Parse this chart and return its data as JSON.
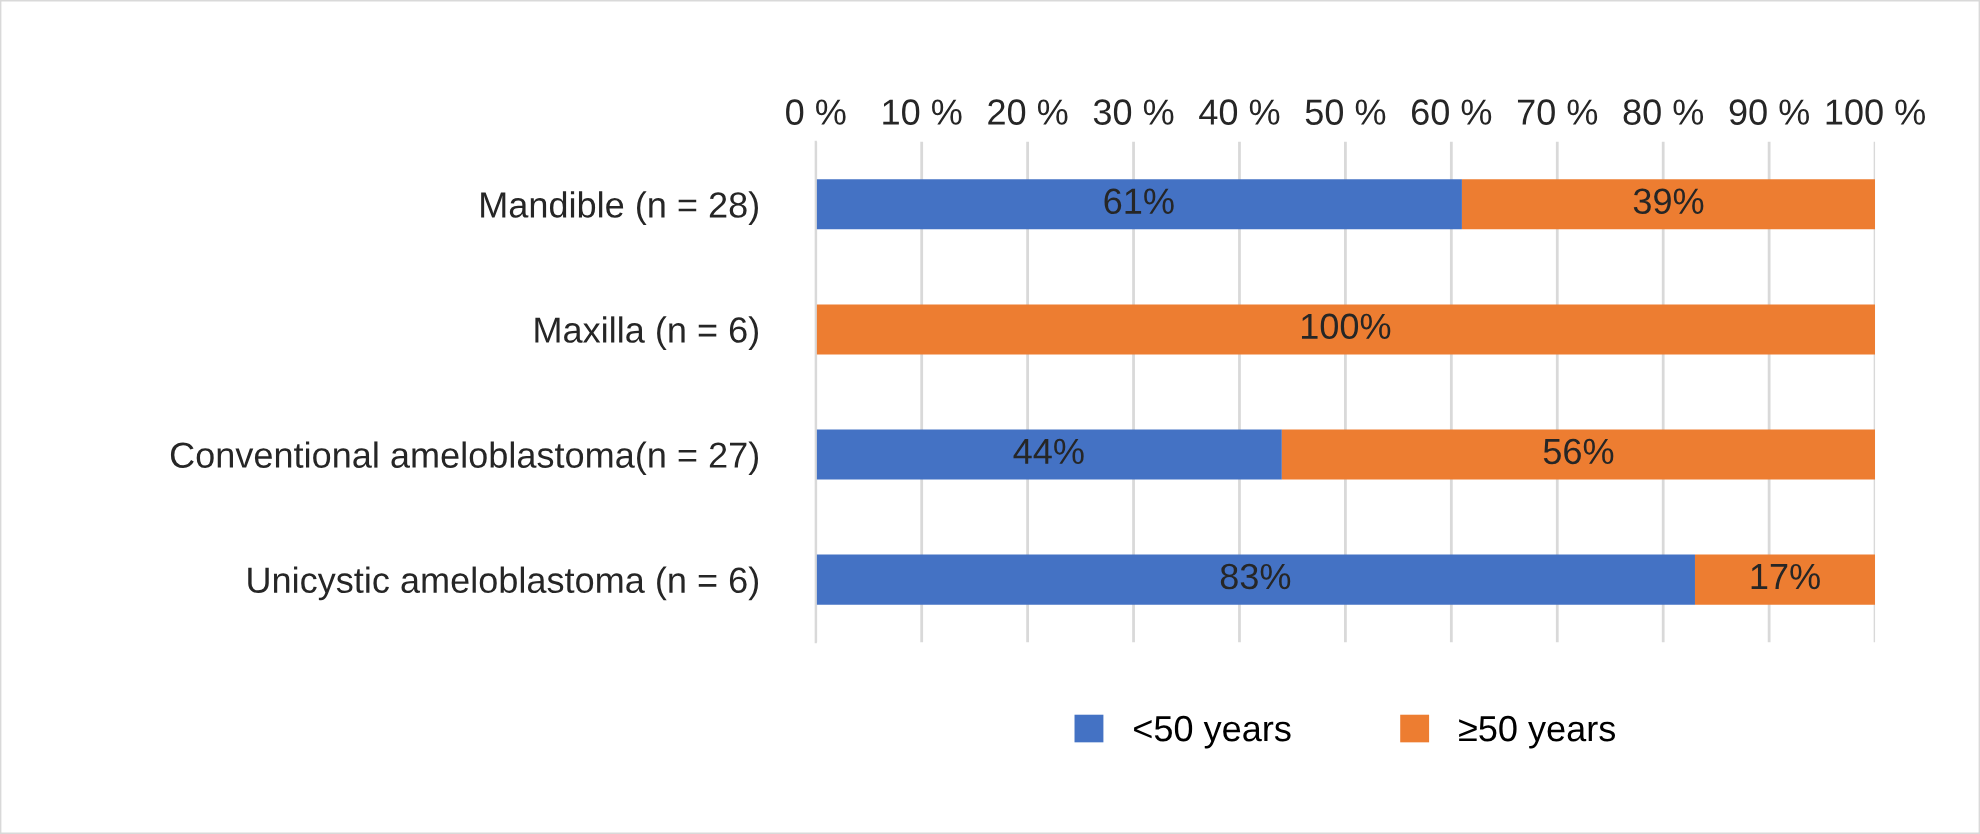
{
  "chart_data": {
    "type": "bar",
    "orientation": "horizontal",
    "stacked": true,
    "categories": [
      "Mandible (n = 28)",
      "Maxilla (n = 6)",
      "Conventional ameloblastoma(n = 27)",
      "Unicystic ameloblastoma (n = 6)"
    ],
    "series": [
      {
        "name": "<50 years",
        "color": "#4472c4",
        "values": [
          61,
          0,
          44,
          83
        ],
        "value_labels": [
          "61%",
          null,
          "44%",
          "83%"
        ]
      },
      {
        "name": "≥50 years",
        "color": "#ed7d31",
        "values": [
          39,
          100,
          56,
          17
        ],
        "value_labels": [
          "39%",
          "100%",
          "56%",
          "17%"
        ]
      }
    ],
    "xlim": [
      0,
      100
    ],
    "xticks": [
      {
        "value": 0,
        "label": "0 %"
      },
      {
        "value": 10,
        "label": "10 %"
      },
      {
        "value": 20,
        "label": "20 %"
      },
      {
        "value": 30,
        "label": "30 %"
      },
      {
        "value": 40,
        "label": "40 %"
      },
      {
        "value": 50,
        "label": "50 %"
      },
      {
        "value": 60,
        "label": "60 %"
      },
      {
        "value": 70,
        "label": "70 %"
      },
      {
        "value": 80,
        "label": "80 %"
      },
      {
        "value": 90,
        "label": "90 %"
      },
      {
        "value": 100,
        "label": "100 %"
      }
    ],
    "grid": "x",
    "legend": "bottom"
  }
}
